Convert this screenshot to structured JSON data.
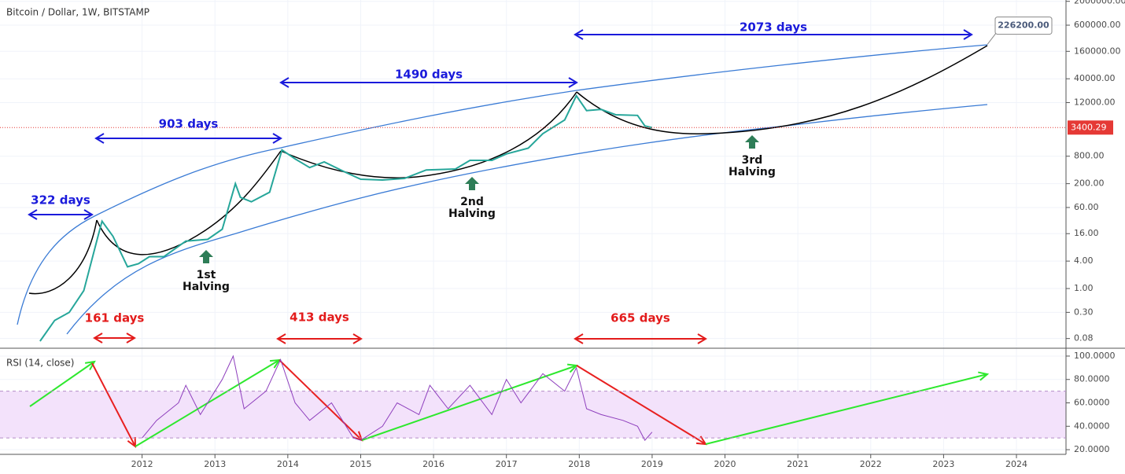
{
  "chart_data": [
    {
      "type": "line",
      "title": "Bitcoin / Dollar, 1W, BITSTAMP",
      "log_scale": true,
      "xlim": [
        2010.05,
        2024.68
      ],
      "ylim": [
        0.049,
        2140000
      ],
      "yticks": [
        {
          "value": 2000000,
          "label": "2000000.00"
        },
        {
          "value": 600000,
          "label": "600000.00"
        },
        {
          "value": 160000,
          "label": "160000.00"
        },
        {
          "value": 40000,
          "label": "40000.00"
        },
        {
          "value": 12000,
          "label": "12000.00"
        },
        {
          "value": 800,
          "label": "800.00"
        },
        {
          "value": 200,
          "label": "200.00"
        },
        {
          "value": 60,
          "label": "60.00"
        },
        {
          "value": 16,
          "label": "16.00"
        },
        {
          "value": 4,
          "label": "4.00"
        },
        {
          "value": 1,
          "label": "1.00"
        },
        {
          "value": 0.3,
          "label": "0.30"
        },
        {
          "value": 0.08,
          "label": "0.08"
        }
      ],
      "x": [
        2010.6,
        2010.8,
        2011.0,
        2011.2,
        2011.4,
        2011.45,
        2011.6,
        2011.8,
        2011.95,
        2012.1,
        2012.3,
        2012.6,
        2012.9,
        2013.1,
        2013.28,
        2013.35,
        2013.5,
        2013.75,
        2013.92,
        2014.1,
        2014.3,
        2014.5,
        2014.8,
        2015.0,
        2015.3,
        2015.6,
        2015.9,
        2016.3,
        2016.5,
        2016.8,
        2017.0,
        2017.3,
        2017.5,
        2017.8,
        2017.96,
        2018.1,
        2018.3,
        2018.5,
        2018.8,
        2018.9,
        2019.0
      ],
      "series": [
        {
          "name": "BTCUSD",
          "color": "#26a69a",
          "values": [
            0.07,
            0.2,
            0.3,
            0.9,
            15,
            30,
            14,
            3,
            3.5,
            5,
            5,
            11,
            12,
            20,
            200,
            100,
            80,
            130,
            1100,
            700,
            450,
            600,
            350,
            250,
            240,
            260,
            400,
            420,
            650,
            650,
            900,
            1200,
            2500,
            5000,
            17000,
            8000,
            8500,
            6500,
            6300,
            3700,
            3400.29
          ]
        }
      ],
      "target": {
        "value": 226200,
        "label": "226200.00"
      },
      "spans": [
        {
          "label": "322 days",
          "color": "#1a1adb"
        },
        {
          "label": "903 days",
          "color": "#1a1adb"
        },
        {
          "label": "1490 days",
          "color": "#1a1adb"
        },
        {
          "label": "2073 days",
          "color": "#1a1adb"
        },
        {
          "label": "161 days",
          "color": "#e31b1b"
        },
        {
          "label": "413 days",
          "color": "#e31b1b"
        },
        {
          "label": "665 days",
          "color": "#e31b1b"
        }
      ],
      "halvings": [
        [
          "1st",
          "Halving"
        ],
        [
          "2nd",
          "Halving"
        ],
        [
          "3rd",
          "Halving"
        ]
      ]
    },
    {
      "type": "line",
      "title": "RSI (14, close)",
      "xlim": [
        2010.05,
        2024.68
      ],
      "ylim": [
        16,
        106.7
      ],
      "xticks": [
        2012,
        2013,
        2014,
        2015,
        2016,
        2017,
        2018,
        2019,
        2020,
        2021,
        2022,
        2023,
        2024
      ],
      "yticks": [
        {
          "value": 100,
          "label": "100.0000"
        },
        {
          "value": 80,
          "label": "80.0000"
        },
        {
          "value": 60,
          "label": "60.0000"
        },
        {
          "value": 40,
          "label": "40.0000"
        },
        {
          "value": 20,
          "label": "20.0000"
        }
      ],
      "band": [
        30,
        70
      ],
      "x": [
        2012.0,
        2012.2,
        2012.5,
        2012.6,
        2012.8,
        2013.1,
        2013.25,
        2013.4,
        2013.7,
        2013.9,
        2014.1,
        2014.3,
        2014.6,
        2014.9,
        2015.0,
        2015.3,
        2015.5,
        2015.8,
        2015.95,
        2016.2,
        2016.5,
        2016.8,
        2017.0,
        2017.2,
        2017.5,
        2017.8,
        2017.96,
        2018.1,
        2018.3,
        2018.6,
        2018.8,
        2018.9,
        2019.0
      ],
      "series": [
        {
          "name": "RSI",
          "color": "#8e3fbd",
          "values": [
            30,
            45,
            60,
            75,
            50,
            80,
            100,
            55,
            70,
            97,
            60,
            45,
            60,
            30,
            28,
            40,
            60,
            50,
            75,
            55,
            75,
            50,
            80,
            60,
            85,
            70,
            90,
            55,
            50,
            45,
            40,
            28,
            35
          ]
        }
      ]
    }
  ]
}
